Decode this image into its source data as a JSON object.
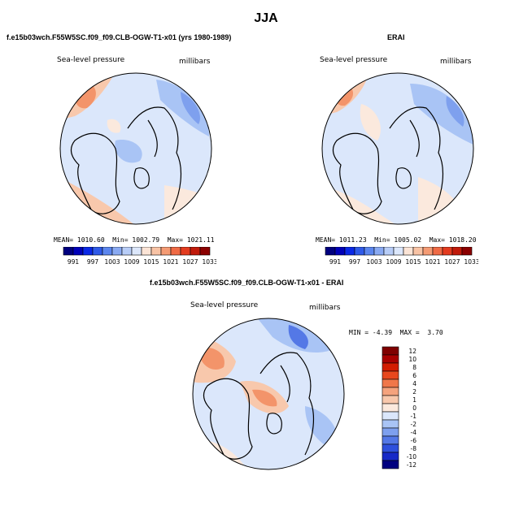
{
  "figure": {
    "season": "JJA",
    "colors": {
      "blue_dark": "#00007f",
      "blue_mid": "#3a66e0",
      "blue_light": "#a9c4f5",
      "blue_pale": "#dbe7fb",
      "neutral": "#fbe9dd",
      "orange_light": "#f8c8ac",
      "orange_mid": "#f3946a",
      "red_dark": "#7f0000"
    }
  },
  "panels": {
    "model": {
      "title": "f.e15b03wch.F55W5SC.f09_f09.CLB-OGW-T1-x01 (yrs 1980-1989)",
      "variable": "Sea-level pressure",
      "units": "millibars",
      "mean_label": "MEAN=",
      "mean": "1010.60",
      "min_label": "Min=",
      "min": "1002.79",
      "max_label": "Max=",
      "max": "1021.11"
    },
    "obs": {
      "title": "ERAI",
      "variable": "Sea-level pressure",
      "units": "millibars",
      "mean_label": "MEAN=",
      "mean": "1011.23",
      "min_label": "Min=",
      "min": "1005.02",
      "max_label": "Max=",
      "max": "1018.20"
    },
    "diff": {
      "title": "f.e15b03wch.F55W5SC.f09_f09.CLB-OGW-T1-x01 - ERAI",
      "variable": "Sea-level pressure",
      "units": "millibars",
      "min_label": "MIN =",
      "min": "-4.39",
      "max_label": "MAX =",
      "max": "3.70"
    }
  },
  "chart_data": [
    {
      "type": "heatmap",
      "title": "f.e15b03wch.F55W5SC.f09_f09.CLB-OGW-T1-x01 (yrs 1980-1989)",
      "projection": "polar-stereographic-north",
      "variable": "Sea-level pressure",
      "units": "millibars",
      "mean": 1010.6,
      "min": 1002.79,
      "max": 1021.11,
      "colorbar_levels": [
        991,
        997,
        1003,
        1009,
        1015,
        1021,
        1027,
        1033
      ],
      "colorbar_orientation": "horizontal"
    },
    {
      "type": "heatmap",
      "title": "ERAI",
      "projection": "polar-stereographic-north",
      "variable": "Sea-level pressure",
      "units": "millibars",
      "mean": 1011.23,
      "min": 1005.02,
      "max": 1018.2,
      "colorbar_levels": [
        991,
        997,
        1003,
        1009,
        1015,
        1021,
        1027,
        1033
      ],
      "colorbar_orientation": "horizontal"
    },
    {
      "type": "heatmap",
      "title": "f.e15b03wch.F55W5SC.f09_f09.CLB-OGW-T1-x01 - ERAI",
      "projection": "polar-stereographic-north",
      "variable": "Sea-level pressure",
      "units": "millibars",
      "min": -4.39,
      "max": 3.7,
      "colorbar_levels": [
        12,
        10,
        8,
        6,
        4,
        2,
        1,
        0,
        -1,
        -2,
        -4,
        -6,
        -8,
        -10,
        -12
      ],
      "colorbar_orientation": "vertical"
    }
  ],
  "colorbar_h": {
    "swatches": [
      "#00007f",
      "#0000b8",
      "#0a28e6",
      "#2f5ae8",
      "#5c86ee",
      "#8aaaf2",
      "#b8cdf7",
      "#dce7fb",
      "#fbe4d6",
      "#f8c3a5",
      "#f49b74",
      "#ef6a45",
      "#e33b1f",
      "#c01a0a",
      "#8b0000"
    ],
    "labels": [
      "991",
      "997",
      "1003",
      "1009",
      "1015",
      "1021",
      "1027",
      "1033"
    ]
  },
  "colorbar_v": {
    "swatches": [
      "#7f0000",
      "#a80000",
      "#d21c00",
      "#e8481e",
      "#f0774a",
      "#f5a37d",
      "#f8c8ac",
      "#fbe9dd",
      "#dbe7fb",
      "#a9c4f5",
      "#7ea0ee",
      "#5478e6",
      "#2e50dd",
      "#1629c7",
      "#00007f"
    ],
    "labels": [
      "12",
      "10",
      "8",
      "6",
      "4",
      "2",
      "1",
      "0",
      "-1",
      "-2",
      "-4",
      "-6",
      "-8",
      "-10",
      "-12"
    ]
  }
}
